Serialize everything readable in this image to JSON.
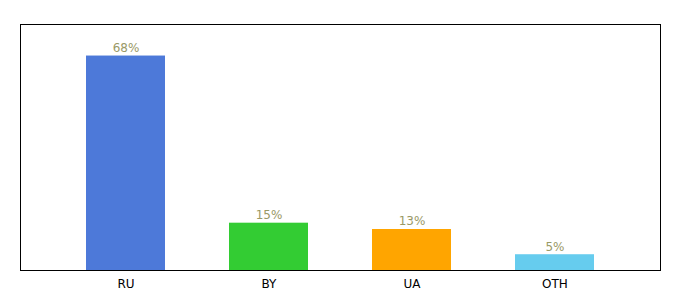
{
  "chart_data": {
    "type": "bar",
    "categories": [
      "RU",
      "BY",
      "UA",
      "OTH"
    ],
    "values": [
      68,
      15,
      13,
      5
    ],
    "colors": [
      "#4d79d9",
      "#33cc33",
      "#ffa500",
      "#66ccee"
    ],
    "value_labels": [
      "68%",
      "15%",
      "13%",
      "5%"
    ],
    "data_labels": true,
    "ylim": [
      0,
      78
    ],
    "tick_labels": "x",
    "grid": false
  }
}
